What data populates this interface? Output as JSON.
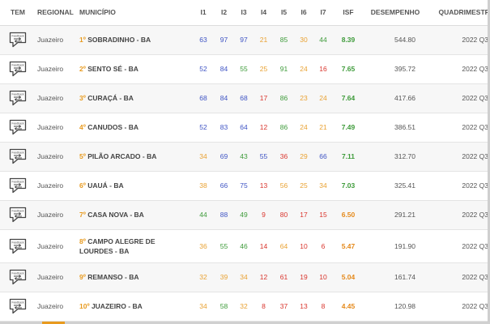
{
  "header": {
    "tem": "TEM",
    "regional": "REGIONAL",
    "municipio": "MUNICÍPIO",
    "i1": "I1",
    "i2": "I2",
    "i3": "I3",
    "i4": "I4",
    "i5": "I5",
    "i6": "I6",
    "i7": "I7",
    "isf": "ISF",
    "desempenho": "DESEMPENHO",
    "quadrimestre": "QUADRIMESTRE"
  },
  "feedback_icon_text": "Feedback",
  "colors": {
    "blue": "#3f54c4",
    "green": "#3e9b3a",
    "orange": "#e9a233",
    "red": "#d9352d",
    "rank": "#e89a1e"
  },
  "rows": [
    {
      "regional": "Juazeiro",
      "rank": "1º",
      "municipio": "SOBRADINHO - BA",
      "indicators": [
        {
          "v": "63",
          "c": "blue"
        },
        {
          "v": "97",
          "c": "blue"
        },
        {
          "v": "97",
          "c": "blue"
        },
        {
          "v": "21",
          "c": "orange"
        },
        {
          "v": "85",
          "c": "green"
        },
        {
          "v": "30",
          "c": "orange"
        },
        {
          "v": "44",
          "c": "green"
        }
      ],
      "isf": "8.39",
      "isf_color": "green",
      "desempenho": "544.80",
      "quadrimestre": "2022 Q3"
    },
    {
      "regional": "Juazeiro",
      "rank": "2º",
      "municipio": "SENTO SÉ - BA",
      "indicators": [
        {
          "v": "52",
          "c": "blue"
        },
        {
          "v": "84",
          "c": "blue"
        },
        {
          "v": "55",
          "c": "green"
        },
        {
          "v": "25",
          "c": "orange"
        },
        {
          "v": "91",
          "c": "green"
        },
        {
          "v": "24",
          "c": "orange"
        },
        {
          "v": "16",
          "c": "red"
        }
      ],
      "isf": "7.65",
      "isf_color": "green",
      "desempenho": "395.72",
      "quadrimestre": "2022 Q3"
    },
    {
      "regional": "Juazeiro",
      "rank": "3º",
      "municipio": "CURAÇÁ - BA",
      "indicators": [
        {
          "v": "68",
          "c": "blue"
        },
        {
          "v": "84",
          "c": "blue"
        },
        {
          "v": "68",
          "c": "blue"
        },
        {
          "v": "17",
          "c": "red"
        },
        {
          "v": "86",
          "c": "green"
        },
        {
          "v": "23",
          "c": "orange"
        },
        {
          "v": "24",
          "c": "orange"
        }
      ],
      "isf": "7.64",
      "isf_color": "green",
      "desempenho": "417.66",
      "quadrimestre": "2022 Q3"
    },
    {
      "regional": "Juazeiro",
      "rank": "4º",
      "municipio": "CANUDOS - BA",
      "indicators": [
        {
          "v": "52",
          "c": "blue"
        },
        {
          "v": "83",
          "c": "blue"
        },
        {
          "v": "64",
          "c": "blue"
        },
        {
          "v": "12",
          "c": "red"
        },
        {
          "v": "86",
          "c": "green"
        },
        {
          "v": "24",
          "c": "orange"
        },
        {
          "v": "21",
          "c": "orange"
        }
      ],
      "isf": "7.49",
      "isf_color": "green",
      "desempenho": "386.51",
      "quadrimestre": "2022 Q3"
    },
    {
      "regional": "Juazeiro",
      "rank": "5º",
      "municipio": "PILÃO ARCADO - BA",
      "indicators": [
        {
          "v": "34",
          "c": "orange"
        },
        {
          "v": "69",
          "c": "blue"
        },
        {
          "v": "43",
          "c": "green"
        },
        {
          "v": "55",
          "c": "blue"
        },
        {
          "v": "36",
          "c": "red"
        },
        {
          "v": "29",
          "c": "orange"
        },
        {
          "v": "66",
          "c": "blue"
        }
      ],
      "isf": "7.11",
      "isf_color": "green",
      "desempenho": "312.70",
      "quadrimestre": "2022 Q3"
    },
    {
      "regional": "Juazeiro",
      "rank": "6º",
      "municipio": "UAUÁ - BA",
      "indicators": [
        {
          "v": "38",
          "c": "orange"
        },
        {
          "v": "66",
          "c": "blue"
        },
        {
          "v": "75",
          "c": "blue"
        },
        {
          "v": "13",
          "c": "red"
        },
        {
          "v": "56",
          "c": "orange"
        },
        {
          "v": "25",
          "c": "orange"
        },
        {
          "v": "34",
          "c": "orange"
        }
      ],
      "isf": "7.03",
      "isf_color": "green",
      "desempenho": "325.41",
      "quadrimestre": "2022 Q3"
    },
    {
      "regional": "Juazeiro",
      "rank": "7º",
      "municipio": "CASA NOVA - BA",
      "indicators": [
        {
          "v": "44",
          "c": "green"
        },
        {
          "v": "88",
          "c": "blue"
        },
        {
          "v": "49",
          "c": "green"
        },
        {
          "v": "9",
          "c": "red"
        },
        {
          "v": "80",
          "c": "red"
        },
        {
          "v": "17",
          "c": "red"
        },
        {
          "v": "15",
          "c": "red"
        }
      ],
      "isf": "6.50",
      "isf_color": "orange",
      "desempenho": "291.21",
      "quadrimestre": "2022 Q3"
    },
    {
      "regional": "Juazeiro",
      "rank": "8º",
      "municipio": "CAMPO ALEGRE DE LOURDES - BA",
      "indicators": [
        {
          "v": "36",
          "c": "orange"
        },
        {
          "v": "55",
          "c": "green"
        },
        {
          "v": "46",
          "c": "green"
        },
        {
          "v": "14",
          "c": "red"
        },
        {
          "v": "64",
          "c": "orange"
        },
        {
          "v": "10",
          "c": "red"
        },
        {
          "v": "6",
          "c": "red"
        }
      ],
      "isf": "5.47",
      "isf_color": "orange",
      "desempenho": "191.90",
      "quadrimestre": "2022 Q3"
    },
    {
      "regional": "Juazeiro",
      "rank": "9º",
      "municipio": "REMANSO - BA",
      "indicators": [
        {
          "v": "32",
          "c": "orange"
        },
        {
          "v": "39",
          "c": "orange"
        },
        {
          "v": "34",
          "c": "orange"
        },
        {
          "v": "12",
          "c": "red"
        },
        {
          "v": "61",
          "c": "red"
        },
        {
          "v": "19",
          "c": "red"
        },
        {
          "v": "10",
          "c": "red"
        }
      ],
      "isf": "5.04",
      "isf_color": "orange",
      "desempenho": "161.74",
      "quadrimestre": "2022 Q3"
    },
    {
      "regional": "Juazeiro",
      "rank": "10º",
      "municipio": "JUAZEIRO - BA",
      "indicators": [
        {
          "v": "34",
          "c": "orange"
        },
        {
          "v": "58",
          "c": "green"
        },
        {
          "v": "32",
          "c": "orange"
        },
        {
          "v": "8",
          "c": "red"
        },
        {
          "v": "37",
          "c": "red"
        },
        {
          "v": "13",
          "c": "red"
        },
        {
          "v": "8",
          "c": "red"
        }
      ],
      "isf": "4.45",
      "isf_color": "orange",
      "desempenho": "120.98",
      "quadrimestre": "2022 Q3"
    }
  ]
}
